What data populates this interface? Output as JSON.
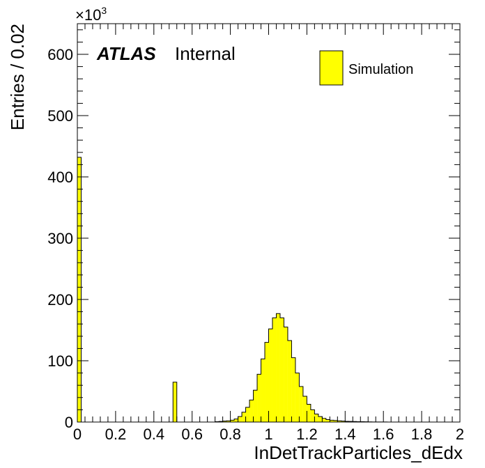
{
  "chart_data": {
    "type": "bar",
    "title": "",
    "xlabel": "InDetTrackParticles_dEdx",
    "ylabel": "Entries / 0.02",
    "y_multiplier": "×10",
    "y_multiplier_exp": "3",
    "xlim": [
      0,
      2
    ],
    "ylim": [
      0,
      650
    ],
    "bin_width": 0.02,
    "x_ticks": [
      "0",
      "0.2",
      "0.4",
      "0.6",
      "0.8",
      "1",
      "1.2",
      "1.4",
      "1.6",
      "1.8",
      "2"
    ],
    "y_ticks": [
      "0",
      "100",
      "200",
      "300",
      "400",
      "500",
      "600"
    ],
    "atlas_label": {
      "bold": "ATLAS",
      "text": "Internal"
    },
    "legend": {
      "position": "top-right",
      "entries": [
        "Simulation"
      ]
    },
    "fill_color": "#ffff00",
    "series": [
      {
        "name": "Simulation",
        "bin_lows": [
          0.0,
          0.5,
          0.72,
          0.74,
          0.76,
          0.78,
          0.8,
          0.82,
          0.84,
          0.86,
          0.88,
          0.9,
          0.92,
          0.94,
          0.96,
          0.98,
          1.0,
          1.02,
          1.04,
          1.06,
          1.08,
          1.1,
          1.12,
          1.14,
          1.16,
          1.18,
          1.2,
          1.22,
          1.24,
          1.26,
          1.28,
          1.3,
          1.32,
          1.34,
          1.36,
          1.38,
          1.4,
          1.42,
          1.44,
          1.46,
          1.48,
          1.5,
          1.52,
          1.54,
          1.56,
          1.58,
          1.6
        ],
        "values": [
          432,
          65,
          0.5,
          1,
          1.5,
          2,
          3,
          5,
          9,
          16,
          24,
          36,
          52,
          78,
          103,
          130,
          152,
          170,
          177,
          170,
          155,
          133,
          105,
          80,
          58,
          42,
          29,
          20,
          13,
          9,
          6,
          4,
          3,
          2.5,
          2,
          1.5,
          1.2,
          1,
          0.8,
          0.6,
          0.5,
          0.4,
          0.3,
          0.2,
          0.2,
          0.1,
          0.1
        ]
      }
    ]
  }
}
